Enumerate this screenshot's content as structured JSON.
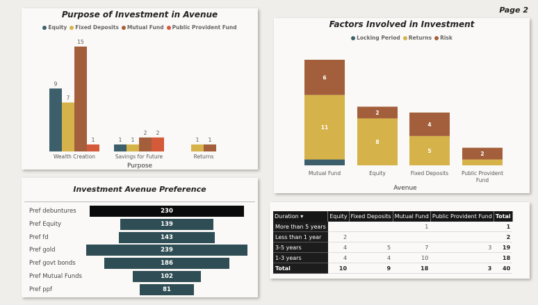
{
  "page_label": "Page 2",
  "purpose_chart": {
    "type": "bar",
    "title": "Purpose of Investment in Avenue",
    "xlabel": "Purpose",
    "categories": [
      "Wealth Creation",
      "Savings for Future",
      "Returns"
    ],
    "series": [
      {
        "name": "Equity",
        "color": "#3c5f6b",
        "values": [
          9,
          1,
          null
        ]
      },
      {
        "name": "Fixed Deposits",
        "color": "#d6b24a",
        "values": [
          7,
          1,
          1
        ]
      },
      {
        "name": "Mutual Fund",
        "color": "#a35f3b",
        "values": [
          15,
          2,
          1
        ]
      },
      {
        "name": "Public Provident Fund",
        "color": "#d45a3a",
        "values": [
          1,
          2,
          null
        ]
      }
    ],
    "ylim": [
      0,
      15
    ]
  },
  "factors_chart": {
    "type": "bar",
    "stacked": true,
    "title": "Factors Involved in Investment",
    "xlabel": "Avenue",
    "categories": [
      "Mutual Fund",
      "Equity",
      "Fixed Deposits",
      "Public Provident Fund"
    ],
    "series": [
      {
        "name": "Locking Period",
        "color": "#3c5f6b",
        "values": [
          1,
          0,
          0,
          0
        ]
      },
      {
        "name": "Returns",
        "color": "#d6b24a",
        "values": [
          11,
          8,
          5,
          1
        ]
      },
      {
        "name": "Risk",
        "color": "#a35f3b",
        "values": [
          6,
          2,
          4,
          2
        ]
      }
    ],
    "labels": [
      [
        null,
        "11",
        "6"
      ],
      [
        null,
        "8",
        "2"
      ],
      [
        null,
        "5",
        "4"
      ],
      [
        null,
        null,
        "2"
      ]
    ]
  },
  "preference_chart": {
    "type": "bar",
    "title": "Investment Avenue Preference",
    "categories": [
      "Pref debuntures",
      "Pref Equity",
      "Pref fd",
      "Pref gold",
      "Pref govt bonds",
      "Pref Mutual Funds",
      "Pref ppf"
    ],
    "values": [
      230,
      139,
      143,
      239,
      186,
      102,
      81
    ],
    "highlight_color": "#0a0a0a",
    "bar_color": "#2f4d54"
  },
  "matrix": {
    "headers": [
      "Duration",
      "Equity",
      "Fixed Deposits",
      "Mutual Fund",
      "Public Provident Fund",
      "Total"
    ],
    "rows": [
      {
        "label": "More than 5 years",
        "cells": [
          "",
          "",
          "1",
          "",
          "1"
        ]
      },
      {
        "label": "Less than 1 year",
        "cells": [
          "2",
          "",
          "",
          "",
          "2"
        ]
      },
      {
        "label": "3-5 years",
        "cells": [
          "4",
          "5",
          "7",
          "3",
          "19"
        ]
      },
      {
        "label": "1-3 years",
        "cells": [
          "4",
          "4",
          "10",
          "",
          "18"
        ]
      }
    ],
    "total": {
      "label": "Total",
      "cells": [
        "10",
        "9",
        "18",
        "3",
        "40"
      ]
    }
  }
}
